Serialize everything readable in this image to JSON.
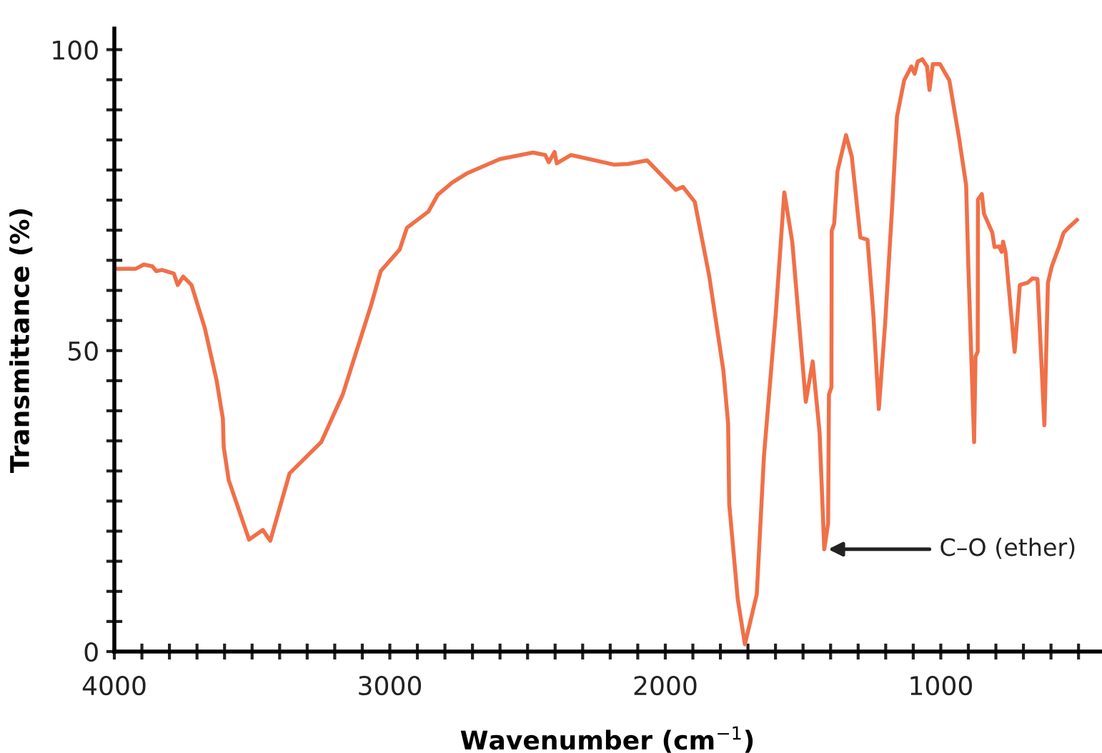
{
  "chart_data": {
    "type": "line",
    "xlabel": "Wavenumber (cm$^{−1}$)",
    "ylabel": "Transmittance (%)",
    "xlim": [
      4000,
      420
    ],
    "ylim": [
      0,
      103.5
    ],
    "xticks": [
      4000,
      {
        "value": 3900,
        "label": null
      },
      {
        "value": 3800,
        "label": null
      },
      {
        "value": 3700,
        "label": null
      },
      {
        "value": 3600,
        "label": null
      },
      {
        "value": 3500,
        "label": null
      },
      {
        "value": 3400,
        "label": null
      },
      {
        "value": 3300,
        "label": null
      },
      {
        "value": 3200,
        "label": null
      },
      {
        "value": 3100,
        "label": null
      },
      3000,
      {
        "value": 2900,
        "label": null
      },
      {
        "value": 2800,
        "label": null
      },
      {
        "value": 2700,
        "label": null
      },
      {
        "value": 2600,
        "label": null
      },
      {
        "value": 2500,
        "label": null
      },
      {
        "value": 2400,
        "label": null
      },
      {
        "value": 2300,
        "label": null
      },
      {
        "value": 2200,
        "label": null
      },
      {
        "value": 2100,
        "label": null
      },
      2000,
      {
        "value": 1900,
        "label": null
      },
      {
        "value": 1800,
        "label": null
      },
      {
        "value": 1700,
        "label": null
      },
      {
        "value": 1600,
        "label": null
      },
      {
        "value": 1500,
        "label": null
      },
      {
        "value": 1400,
        "label": null
      },
      {
        "value": 1300,
        "label": null
      },
      {
        "value": 1200,
        "label": null
      },
      {
        "value": 1100,
        "label": null
      },
      1000,
      {
        "value": 900,
        "label": null
      },
      {
        "value": 800,
        "label": null
      },
      {
        "value": 700,
        "label": null
      },
      {
        "value": 600,
        "label": null
      },
      {
        "value": 500,
        "label": null
      }
    ],
    "yticks": [
      0,
      {
        "value": 5,
        "label": null
      },
      {
        "value": 10,
        "label": null
      },
      {
        "value": 15,
        "label": null
      },
      {
        "value": 20,
        "label": null
      },
      {
        "value": 25,
        "label": null
      },
      {
        "value": 30,
        "label": null
      },
      {
        "value": 35,
        "label": null
      },
      {
        "value": 40,
        "label": null
      },
      {
        "value": 45,
        "label": null
      },
      50,
      {
        "value": 55,
        "label": null
      },
      {
        "value": 60,
        "label": null
      },
      {
        "value": 65,
        "label": null
      },
      {
        "value": 70,
        "label": null
      },
      {
        "value": 75,
        "label": null
      },
      {
        "value": 80,
        "label": null
      },
      {
        "value": 85,
        "label": null
      },
      {
        "value": 90,
        "label": null
      },
      {
        "value": 95,
        "label": null
      },
      100
    ],
    "grid": false,
    "marker": "none",
    "line_style": "solid",
    "series": [
      {
        "color": "#f07048",
        "x": [
          4000,
          3922,
          3893,
          3862,
          3848,
          3827,
          3784,
          3770,
          3750,
          3720,
          3672,
          3629,
          3606,
          3603,
          3585,
          3511,
          3461,
          3434,
          3364,
          3249,
          3171,
          3067,
          3033,
          2964,
          2938,
          2860,
          2826,
          2774,
          2722,
          2601,
          2480,
          2436,
          2423,
          2402,
          2394,
          2342,
          2187,
          2135,
          2066,
          1962,
          1936,
          1893,
          1841,
          1789,
          1772,
          1768,
          1737,
          1711,
          1668,
          1642,
          1599,
          1568,
          1539,
          1504,
          1490,
          1465,
          1440,
          1423,
          1409,
          1406,
          1397,
          1396,
          1387,
          1375,
          1344,
          1323,
          1292,
          1266,
          1245,
          1225,
          1202,
          1176,
          1159,
          1133,
          1107,
          1095,
          1084,
          1067,
          1050,
          1041,
          1029,
          1003,
          969,
          934,
          908,
          900,
          879,
          874,
          866,
          865,
          851,
          843,
          813,
          805,
          788,
          779,
          774,
          765,
          732,
          713,
          684,
          667,
          649,
          624,
          611,
          597,
          571,
          554,
          537,
          506
        ],
        "values": [
          63.6,
          63.6,
          64.3,
          64.0,
          63.2,
          63.4,
          62.8,
          60.9,
          62.3,
          60.9,
          53.8,
          45.1,
          38.7,
          34.0,
          28.5,
          18.6,
          20.2,
          18.4,
          29.6,
          34.8,
          42.7,
          57.7,
          63.2,
          66.8,
          70.4,
          73.1,
          75.9,
          77.9,
          79.4,
          81.8,
          82.9,
          82.5,
          81.3,
          83.0,
          81.1,
          82.5,
          80.9,
          81.0,
          81.6,
          76.7,
          77.2,
          74.7,
          62.5,
          46.6,
          37.9,
          24.5,
          8.7,
          1.2,
          9.5,
          32.4,
          56.1,
          76.3,
          68.0,
          49.0,
          41.5,
          48.2,
          36.4,
          17.0,
          21.3,
          42.7,
          43.9,
          69.9,
          71.1,
          79.8,
          85.8,
          82.2,
          68.8,
          68.4,
          56.1,
          40.3,
          54.5,
          74.3,
          88.9,
          94.9,
          97.2,
          96.0,
          98.0,
          98.4,
          97.2,
          93.3,
          97.6,
          97.6,
          94.9,
          85.4,
          77.5,
          64.0,
          34.8,
          49.0,
          49.8,
          75.1,
          76.0,
          72.7,
          69.6,
          67.2,
          67.3,
          66.4,
          68.1,
          66.4,
          49.8,
          60.9,
          61.3,
          62.0,
          61.9,
          37.6,
          61.3,
          64.0,
          67.2,
          69.6,
          70.4,
          71.7
        ]
      }
    ],
    "annotations": [
      {
        "text": "C–O (ether)",
        "x": 1423,
        "y": 17.0
      }
    ]
  }
}
